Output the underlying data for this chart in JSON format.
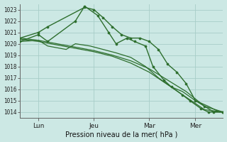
{
  "bg_color": "#cce8e4",
  "grid_color": "#a8cdc8",
  "line_color": "#2d6e2d",
  "ylabel_values": [
    1014,
    1015,
    1016,
    1017,
    1018,
    1019,
    1020,
    1021,
    1022,
    1023
  ],
  "ylim": [
    1013.5,
    1023.5
  ],
  "xlabel": "Pression niveau de la mer( hPa )",
  "xtick_labels": [
    "Lun",
    "Jeu",
    "Mar",
    "Mer"
  ],
  "xtick_positions": [
    1,
    4,
    7,
    9.5
  ],
  "xlim": [
    0,
    11
  ],
  "series": [
    {
      "x": [
        0,
        1,
        1.5,
        3.5,
        4.0,
        4.5,
        5.0,
        5.5,
        6.0,
        6.5,
        7.0,
        7.5,
        8.0,
        8.5,
        9.0,
        9.5,
        10.0,
        10.5,
        11.0
      ],
      "y": [
        1020.5,
        1021.0,
        1021.5,
        1023.2,
        1023.0,
        1022.3,
        1021.5,
        1020.8,
        1020.5,
        1020.5,
        1020.2,
        1019.5,
        1018.2,
        1017.5,
        1016.5,
        1015.0,
        1014.5,
        1014.0,
        1014.0
      ],
      "marker": true,
      "lw": 1.0
    },
    {
      "x": [
        0,
        1,
        1.5,
        3.0,
        3.5,
        4.2,
        4.8,
        5.2,
        5.8,
        6.2,
        6.8,
        7.2,
        7.8,
        8.2,
        8.8,
        9.2,
        9.8,
        10.2,
        11.0
      ],
      "y": [
        1020.2,
        1020.8,
        1020.2,
        1022.0,
        1023.3,
        1022.5,
        1021.0,
        1020.0,
        1020.5,
        1020.2,
        1019.8,
        1018.0,
        1016.8,
        1016.2,
        1015.5,
        1015.0,
        1014.3,
        1014.0,
        1014.0
      ],
      "marker": true,
      "lw": 1.0
    },
    {
      "x": [
        0,
        1,
        1.5,
        2.5,
        3.0,
        3.8,
        4.5,
        5.2,
        6.0,
        6.8,
        7.5,
        8.2,
        8.8,
        9.5,
        10.2,
        10.8,
        11.0
      ],
      "y": [
        1020.2,
        1020.3,
        1019.8,
        1019.5,
        1020.0,
        1019.8,
        1019.5,
        1019.2,
        1018.8,
        1018.0,
        1017.0,
        1016.2,
        1015.8,
        1015.0,
        1014.5,
        1014.0,
        1014.0
      ],
      "marker": false,
      "lw": 0.9
    },
    {
      "x": [
        0,
        1,
        2,
        3,
        4,
        5,
        6,
        7,
        8,
        9,
        10,
        11
      ],
      "y": [
        1020.5,
        1020.3,
        1020.0,
        1019.7,
        1019.4,
        1019.0,
        1018.5,
        1017.8,
        1016.8,
        1015.8,
        1014.5,
        1014.0
      ],
      "marker": false,
      "lw": 0.9
    },
    {
      "x": [
        0,
        1,
        2,
        3,
        4,
        5,
        6,
        7,
        8,
        9,
        10,
        11
      ],
      "y": [
        1020.4,
        1020.2,
        1019.9,
        1019.6,
        1019.3,
        1018.9,
        1018.3,
        1017.5,
        1016.4,
        1015.3,
        1014.2,
        1014.0
      ],
      "marker": false,
      "lw": 0.9
    }
  ]
}
